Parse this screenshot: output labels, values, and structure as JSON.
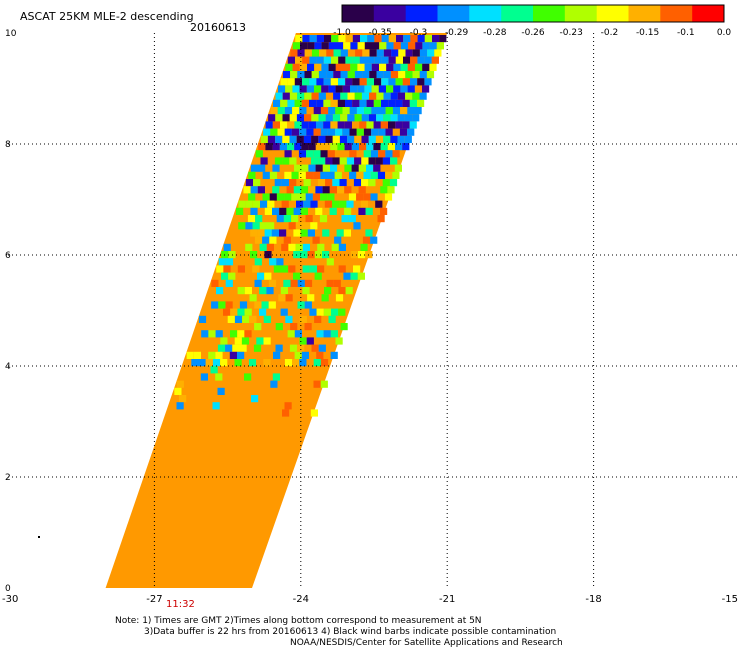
{
  "header": {
    "title": "ASCAT 25KM MLE-2 descending",
    "date": "20160613"
  },
  "colorbar": {
    "labels": [
      "-1.0",
      "-0.35",
      "-0.3",
      "-0.29",
      "-0.28",
      "-0.26",
      "-0.23",
      "-0.2",
      "-0.15",
      "-0.1",
      "0.0"
    ],
    "colors": [
      "#2a004a",
      "#3a00a0",
      "#0020ff",
      "#0090ff",
      "#00e0ff",
      "#00ff90",
      "#40ff00",
      "#b0ff00",
      "#ffff00",
      "#ffb000",
      "#ff6000",
      "#ff0000"
    ]
  },
  "axes": {
    "x_ticks": [
      "-30",
      "-27",
      "-24",
      "-21",
      "-18",
      "-15"
    ],
    "y_ticks": [
      "0",
      "2",
      "4",
      "6",
      "8",
      "10"
    ]
  },
  "time_label": "11:32",
  "notes": {
    "line1": "Note: 1) Times are GMT 2)Times along bottom correspond to measurement at 5N",
    "line2": "3)Data buffer is 22 hrs from 20160613 4) Black wind barbs indicate possible contamination",
    "line3": "NOAA/NESDIS/Center for Satellite Applications and Research"
  },
  "map_data": {
    "lon_range": [
      -30,
      -15
    ],
    "lat_range": [
      0,
      10
    ],
    "fill_color": "#ff9900",
    "swath_corners": [
      [
        -28.0,
        0.0
      ],
      [
        -25.0,
        0.0
      ],
      [
        -21.0,
        10.0
      ],
      [
        -24.1,
        10.0
      ]
    ],
    "legend_colors": [
      "#2a004a",
      "#3a00a0",
      "#0020ff",
      "#0090ff",
      "#00e0ff",
      "#00ff90",
      "#40ff00",
      "#b0ff00",
      "#ffff00",
      "#ffb000",
      "#ff6000",
      "#ff0000"
    ]
  }
}
